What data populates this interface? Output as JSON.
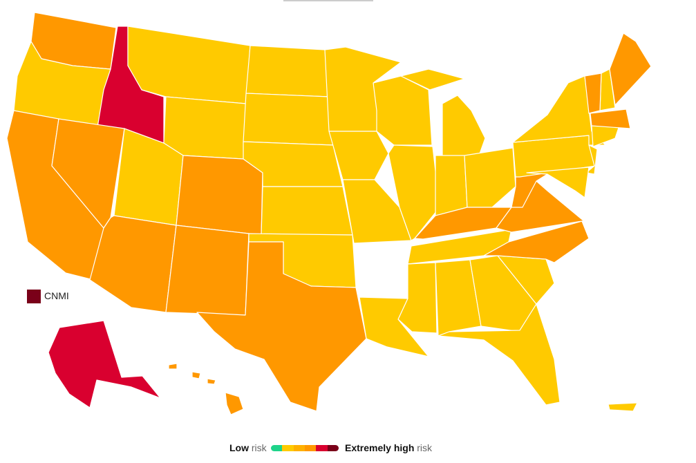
{
  "legend": {
    "low": "Low",
    "low_suffix": "risk",
    "high": "Extremely high",
    "high_suffix": "risk",
    "colors": [
      "#1ed38a",
      "#ffca00",
      "#ffb000",
      "#ff9800",
      "#d9002f",
      "#7a0019"
    ]
  },
  "inset_label": "CNMI",
  "inset_level": 5,
  "region_levels": [
    3,
    1,
    4,
    3,
    3,
    1,
    1,
    1,
    3,
    3,
    3,
    1,
    1,
    1,
    1,
    1,
    1,
    1,
    3,
    1,
    1,
    1,
    1,
    1,
    1,
    1,
    3,
    1,
    1,
    1,
    1,
    1,
    1,
    3,
    3,
    3,
    1,
    1,
    1,
    1,
    1,
    3,
    1,
    3,
    3,
    1,
    4,
    3,
    3,
    3,
    3,
    1
  ]
}
